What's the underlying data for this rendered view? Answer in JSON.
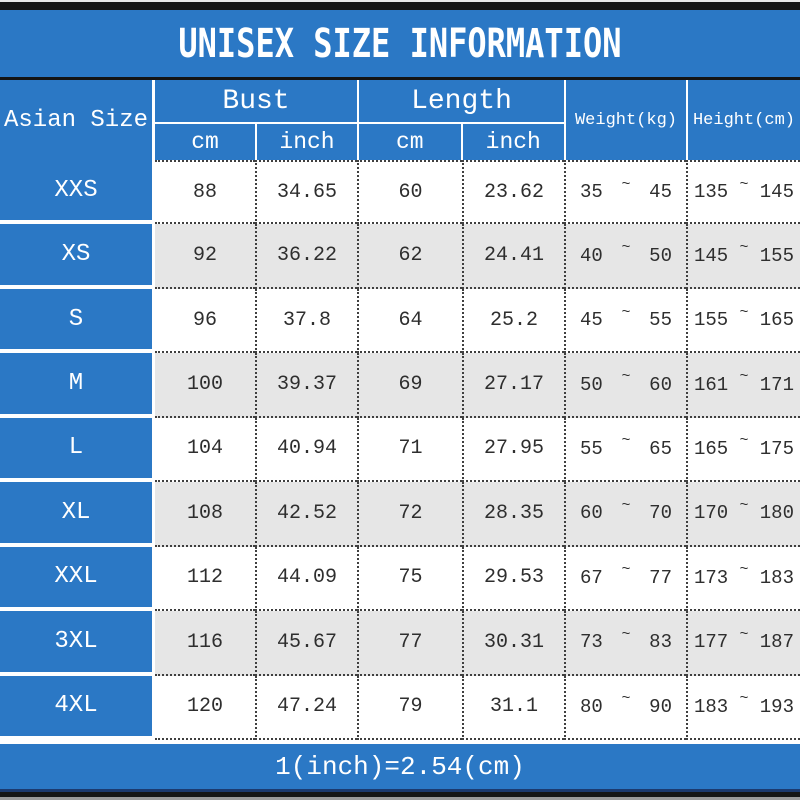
{
  "title": "UNISEX SIZE INFORMATION",
  "footer_note": "1(inch)=2.54(cm)",
  "glyphs": {
    "tilde": "~"
  },
  "colors": {
    "accent_blue": "#2b78c5",
    "row_alt": "#e6e6e6",
    "bar_dark": "#161616",
    "text_dark": "#2e2e2e",
    "divider_navy": "#1c3a6e"
  },
  "header": {
    "size_label": "Asian Size",
    "bust_label": "Bust",
    "length_label": "Length",
    "cm_label": "cm",
    "inch_label": "inch",
    "weight_label": "Weight(kg)",
    "height_label": "Height(cm)"
  },
  "chart_data": {
    "type": "table",
    "title": "UNISEX SIZE INFORMATION",
    "columns": [
      "Asian Size",
      "Bust cm",
      "Bust inch",
      "Length cm",
      "Length inch",
      "Weight(kg)",
      "Height(cm)"
    ],
    "rows": [
      {
        "size": "XXS",
        "bust_cm": "88",
        "bust_inch": "34.65",
        "length_cm": "60",
        "length_inch": "23.62",
        "weight_min": "35",
        "weight_max": "45",
        "height_min": "135",
        "height_max": "145"
      },
      {
        "size": "XS",
        "bust_cm": "92",
        "bust_inch": "36.22",
        "length_cm": "62",
        "length_inch": "24.41",
        "weight_min": "40",
        "weight_max": "50",
        "height_min": "145",
        "height_max": "155"
      },
      {
        "size": "S",
        "bust_cm": "96",
        "bust_inch": "37.8",
        "length_cm": "64",
        "length_inch": "25.2",
        "weight_min": "45",
        "weight_max": "55",
        "height_min": "155",
        "height_max": "165"
      },
      {
        "size": "M",
        "bust_cm": "100",
        "bust_inch": "39.37",
        "length_cm": "69",
        "length_inch": "27.17",
        "weight_min": "50",
        "weight_max": "60",
        "height_min": "161",
        "height_max": "171"
      },
      {
        "size": "L",
        "bust_cm": "104",
        "bust_inch": "40.94",
        "length_cm": "71",
        "length_inch": "27.95",
        "weight_min": "55",
        "weight_max": "65",
        "height_min": "165",
        "height_max": "175"
      },
      {
        "size": "XL",
        "bust_cm": "108",
        "bust_inch": "42.52",
        "length_cm": "72",
        "length_inch": "28.35",
        "weight_min": "60",
        "weight_max": "70",
        "height_min": "170",
        "height_max": "180"
      },
      {
        "size": "XXL",
        "bust_cm": "112",
        "bust_inch": "44.09",
        "length_cm": "75",
        "length_inch": "29.53",
        "weight_min": "67",
        "weight_max": "77",
        "height_min": "173",
        "height_max": "183"
      },
      {
        "size": "3XL",
        "bust_cm": "116",
        "bust_inch": "45.67",
        "length_cm": "77",
        "length_inch": "30.31",
        "weight_min": "73",
        "weight_max": "83",
        "height_min": "177",
        "height_max": "187"
      },
      {
        "size": "4XL",
        "bust_cm": "120",
        "bust_inch": "47.24",
        "length_cm": "79",
        "length_inch": "31.1",
        "weight_min": "80",
        "weight_max": "90",
        "height_min": "183",
        "height_max": "193"
      }
    ]
  }
}
